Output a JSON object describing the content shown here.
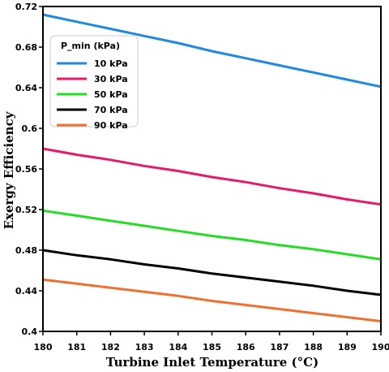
{
  "chart_data": {
    "type": "line",
    "xlabel": "Turbine Inlet Temperature (°C)",
    "ylabel": "Exergy Efficiency",
    "xlim": [
      180,
      190
    ],
    "ylim": [
      0.4,
      0.72
    ],
    "x_ticks": [
      "180",
      "181",
      "182",
      "183",
      "184",
      "185",
      "186",
      "187",
      "188",
      "189",
      "190"
    ],
    "y_ticks": [
      "0.4",
      "0.44",
      "0.48",
      "0.52",
      "0.56",
      "0.6",
      "0.64",
      "0.68",
      "0.72"
    ],
    "grid": false,
    "legend": {
      "title": "P_min (kPa)",
      "placement": "upper-left"
    },
    "x": [
      180,
      181,
      182,
      183,
      184,
      185,
      186,
      187,
      188,
      189,
      190
    ],
    "series": [
      {
        "name": "10 kPa",
        "color": "#1e88e5",
        "values": [
          0.712,
          0.705,
          0.698,
          0.691,
          0.684,
          0.676,
          0.669,
          0.662,
          0.655,
          0.648,
          0.641
        ]
      },
      {
        "name": "30 kPa",
        "color": "#e8196b",
        "values": [
          0.58,
          0.574,
          0.569,
          0.563,
          0.558,
          0.552,
          0.547,
          0.541,
          0.536,
          0.53,
          0.525
        ]
      },
      {
        "name": "50 kPa",
        "color": "#22dd22",
        "values": [
          0.519,
          0.514,
          0.509,
          0.504,
          0.499,
          0.494,
          0.49,
          0.485,
          0.481,
          0.476,
          0.471
        ]
      },
      {
        "name": "70 kPa",
        "color": "#000000",
        "values": [
          0.48,
          0.475,
          0.471,
          0.466,
          0.462,
          0.457,
          0.453,
          0.449,
          0.445,
          0.44,
          0.436
        ]
      },
      {
        "name": "90 kPa",
        "color": "#f07030",
        "values": [
          0.451,
          0.447,
          0.443,
          0.439,
          0.435,
          0.43,
          0.426,
          0.422,
          0.418,
          0.414,
          0.41
        ]
      }
    ]
  }
}
